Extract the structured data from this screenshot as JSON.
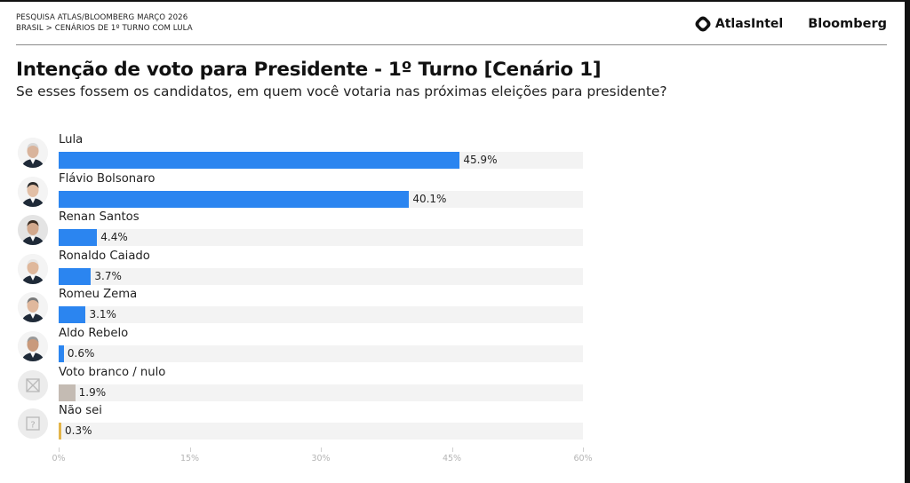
{
  "header": {
    "line1": "PESQUISA ATLAS/BLOOMBERG MARÇO 2026",
    "line2": "BRASIL > CENÁRIOS DE 1º TURNO COM LULA",
    "logo_atlas": "AtlasIntel",
    "logo_bloomberg": "Bloomberg"
  },
  "colors": {
    "candidate_bar": "#2b85f0",
    "blank_null_bar": "#c4bbb3",
    "dont_know_bar": "#e3b54a",
    "track": "#f3f3f3"
  },
  "chart_data": {
    "type": "bar",
    "orientation": "horizontal",
    "title": "Intenção de voto para Presidente - 1º Turno [Cenário 1]",
    "subtitle": "Se esses fossem os candidatos, em quem você votaria nas próximas eleições para presidente?",
    "categories": [
      "Lula",
      "Flávio Bolsonaro",
      "Renan Santos",
      "Ronaldo Caiado",
      "Romeu Zema",
      "Aldo Rebelo",
      "Voto branco / nulo",
      "Não sei"
    ],
    "values": [
      45.9,
      40.1,
      4.4,
      3.7,
      3.1,
      0.6,
      1.9,
      0.3
    ],
    "value_labels": [
      "45.9%",
      "40.1%",
      "4.4%",
      "3.7%",
      "3.1%",
      "0.6%",
      "1.9%",
      "0.3%"
    ],
    "bar_colors": [
      "#2b85f0",
      "#2b85f0",
      "#2b85f0",
      "#2b85f0",
      "#2b85f0",
      "#2b85f0",
      "#c4bbb3",
      "#e3b54a"
    ],
    "avatar_icons": [
      "person-photo",
      "person-photo",
      "person-photo",
      "person-photo",
      "person-photo",
      "person-photo",
      "x-box-icon",
      "question-box-icon"
    ],
    "xlim": [
      0,
      60
    ],
    "xticks": [
      0,
      15,
      30,
      45,
      60
    ],
    "xtick_labels": [
      "0%",
      "15%",
      "30%",
      "45%",
      "60%"
    ],
    "xlabel": "",
    "ylabel": "",
    "grid": false
  }
}
